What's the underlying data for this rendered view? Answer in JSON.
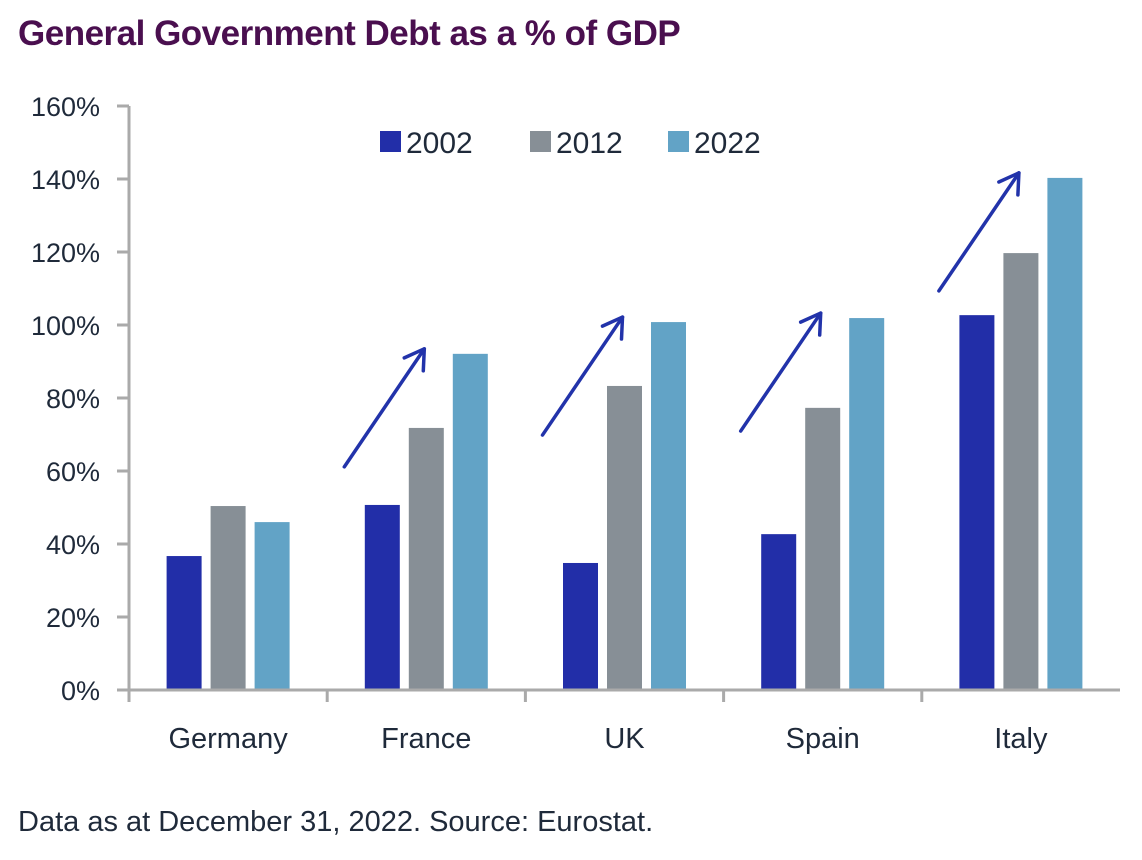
{
  "chart_data": {
    "type": "bar",
    "title": "General Government Debt as a % of GDP",
    "xlabel": "",
    "ylabel": "",
    "categories": [
      "Germany",
      "France",
      "UK",
      "Spain",
      "Italy"
    ],
    "series": [
      {
        "name": "2002",
        "color": "#222ea8",
        "values": [
          36.7,
          50.7,
          34.8,
          42.7,
          102.7
        ]
      },
      {
        "name": "2012",
        "color": "#878f96",
        "values": [
          50.4,
          71.8,
          83.3,
          77.3,
          119.7
        ]
      },
      {
        "name": "2022",
        "color": "#62a3c6",
        "values": [
          46.0,
          92.1,
          100.8,
          101.9,
          140.3
        ]
      }
    ],
    "ylim": [
      0,
      160
    ],
    "yticks": [
      0,
      20,
      40,
      60,
      80,
      100,
      120,
      140,
      160
    ],
    "ytick_labels": [
      "0%",
      "20%",
      "40%",
      "60%",
      "80%",
      "100%",
      "120%",
      "140%",
      "160%"
    ],
    "grid": false,
    "legend_position": "top-center",
    "annotations": [
      {
        "type": "arrow",
        "category": "France",
        "description": "upward trend arrow"
      },
      {
        "type": "arrow",
        "category": "UK",
        "description": "upward trend arrow"
      },
      {
        "type": "arrow",
        "category": "Spain",
        "description": "upward trend arrow"
      },
      {
        "type": "arrow",
        "category": "Italy",
        "description": "upward trend arrow"
      }
    ],
    "arrow_color": "#2233aa",
    "axis_color": "#aaaaaa"
  },
  "footnote": "Data as at December 31, 2022. Source: Eurostat."
}
